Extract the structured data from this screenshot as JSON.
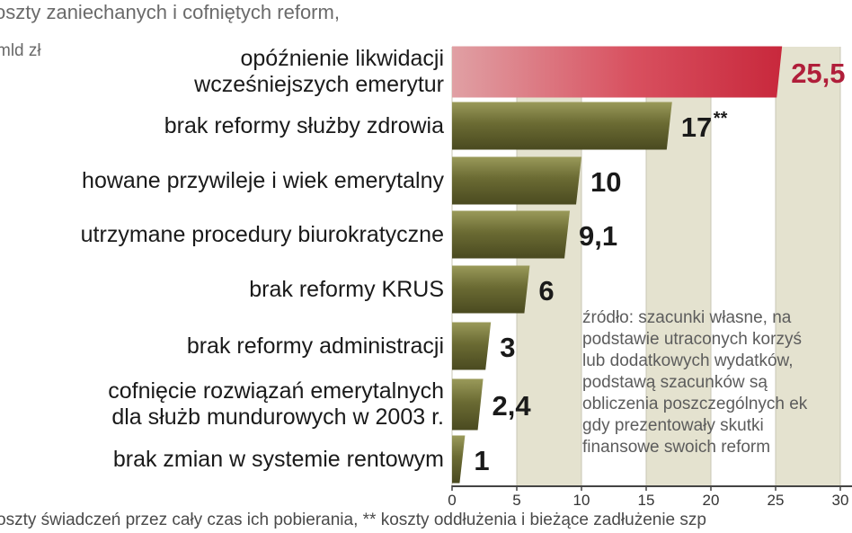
{
  "title": "oszty zaniechanych i cofniętych reform,",
  "unit": "mld zł",
  "source_note": "źródło: szacunki własne, na\npodstawie utraconych korzyś\nlub dodatkowych wydatków,\npodstawą szacunków są\nobliczenia poszczególnych ek\ngdy prezentowały skutki\nfinansowe swoich reform",
  "footnote": "oszty świadczeń przez cały czas ich pobierania, ** koszty oddłużenia i bieżące zadłużenie szp",
  "colors": {
    "highlight_bar": "#c8283c",
    "bar": "#6b6b33",
    "highlight_value": "#b01e3a",
    "value": "#1a1a1a",
    "background_band": "#e4e2cf"
  },
  "chart_data": {
    "type": "bar",
    "orientation": "horizontal",
    "categories": [
      "opóźnienie likwidacji\nwcześniejszych emerytur",
      "brak reformy służby zdrowia",
      "howane przywileje i wiek emerytalny",
      "utrzymane procedury biurokratyczne",
      "brak reformy KRUS",
      "brak reformy administracji",
      "cofnięcie rozwiązań emerytalnych\ndla służb mundurowych w 2003 r.",
      "brak zmian w systemie rentowym"
    ],
    "values": [
      25.5,
      17,
      10,
      9.1,
      6,
      3,
      2.4,
      1
    ],
    "value_labels": [
      "25,5",
      "17",
      "10",
      "9,1",
      "6",
      "3",
      "2,4",
      "1"
    ],
    "value_marks": [
      "",
      "**",
      "",
      "",
      "",
      "",
      "",
      ""
    ],
    "highlight_index": 0,
    "xlim": [
      0,
      30
    ],
    "xticks": [
      "0",
      "5",
      "10",
      "15",
      "20",
      "25",
      "30"
    ],
    "grid": true
  }
}
